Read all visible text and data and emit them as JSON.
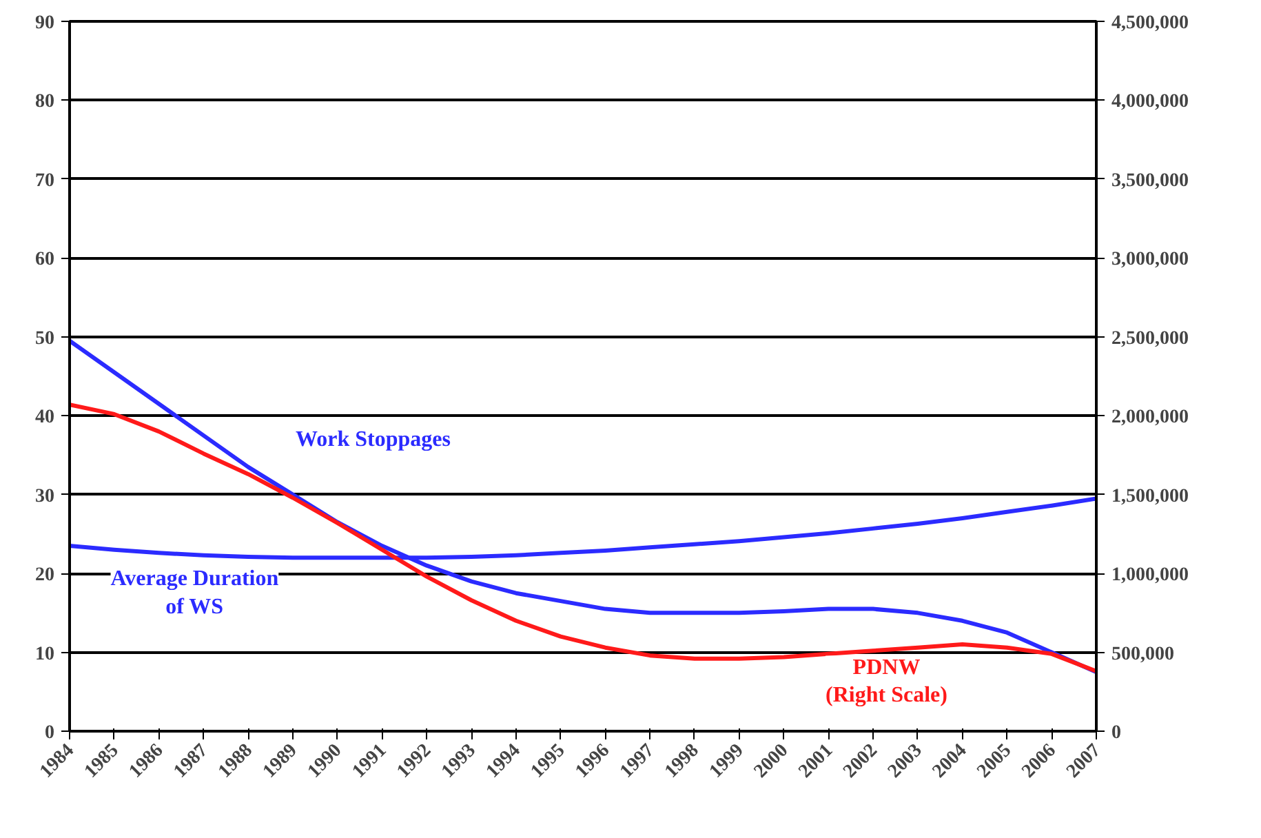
{
  "chart_data": {
    "type": "line",
    "categories": [
      "1984",
      "1985",
      "1986",
      "1987",
      "1988",
      "1989",
      "1990",
      "1991",
      "1992",
      "1993",
      "1994",
      "1995",
      "1996",
      "1997",
      "1998",
      "1999",
      "2000",
      "2001",
      "2002",
      "2003",
      "2004",
      "2005",
      "2006",
      "2007"
    ],
    "series": [
      {
        "name": "Work Stoppages",
        "color": "#2b2bff",
        "values": [
          49.5,
          45.5,
          41.5,
          37.5,
          33.5,
          30,
          26.5,
          23.5,
          21,
          19,
          17.5,
          16.5,
          15.5,
          15,
          15,
          15,
          15.2,
          15.5,
          15.5,
          15,
          14,
          12.5,
          10,
          7.5
        ]
      },
      {
        "name": "Average Duration\nof WS",
        "color": "#2b2bff",
        "values": [
          23.5,
          23,
          22.6,
          22.3,
          22.1,
          22,
          22,
          22,
          22,
          22.1,
          22.3,
          22.6,
          22.9,
          23.3,
          23.7,
          24.1,
          24.6,
          25.1,
          25.7,
          26.3,
          27,
          27.8,
          28.6,
          29.5
        ]
      },
      {
        "name": "PDNW\n(Right Scale)",
        "color": "#ff1a1a",
        "axis": "y2",
        "values": [
          2070000,
          2010000,
          1900000,
          1760000,
          1630000,
          1480000,
          1320000,
          1150000,
          980000,
          830000,
          700000,
          600000,
          530000,
          480000,
          460000,
          460000,
          470000,
          490000,
          510000,
          530000,
          550000,
          530000,
          490000,
          380000
        ]
      }
    ],
    "ylim": [
      0,
      90
    ],
    "yticks": [
      0,
      10,
      20,
      30,
      40,
      50,
      60,
      70,
      80,
      90
    ],
    "y2lim": [
      0,
      4500000
    ],
    "y2ticks": [
      {
        "value": 0,
        "label": "0"
      },
      {
        "value": 500000,
        "label": "500,000"
      },
      {
        "value": 1000000,
        "label": "1,000,000"
      },
      {
        "value": 1500000,
        "label": "1,500,000"
      },
      {
        "value": 2000000,
        "label": "2,000,000"
      },
      {
        "value": 2500000,
        "label": "2,500,000"
      },
      {
        "value": 3000000,
        "label": "3,000,000"
      },
      {
        "value": 3500000,
        "label": "3,500,000"
      },
      {
        "value": 4000000,
        "label": "4,000,000"
      },
      {
        "value": 4500000,
        "label": "4,500,000"
      }
    ],
    "grid": "y",
    "marker": "none",
    "line_style": "solid"
  }
}
